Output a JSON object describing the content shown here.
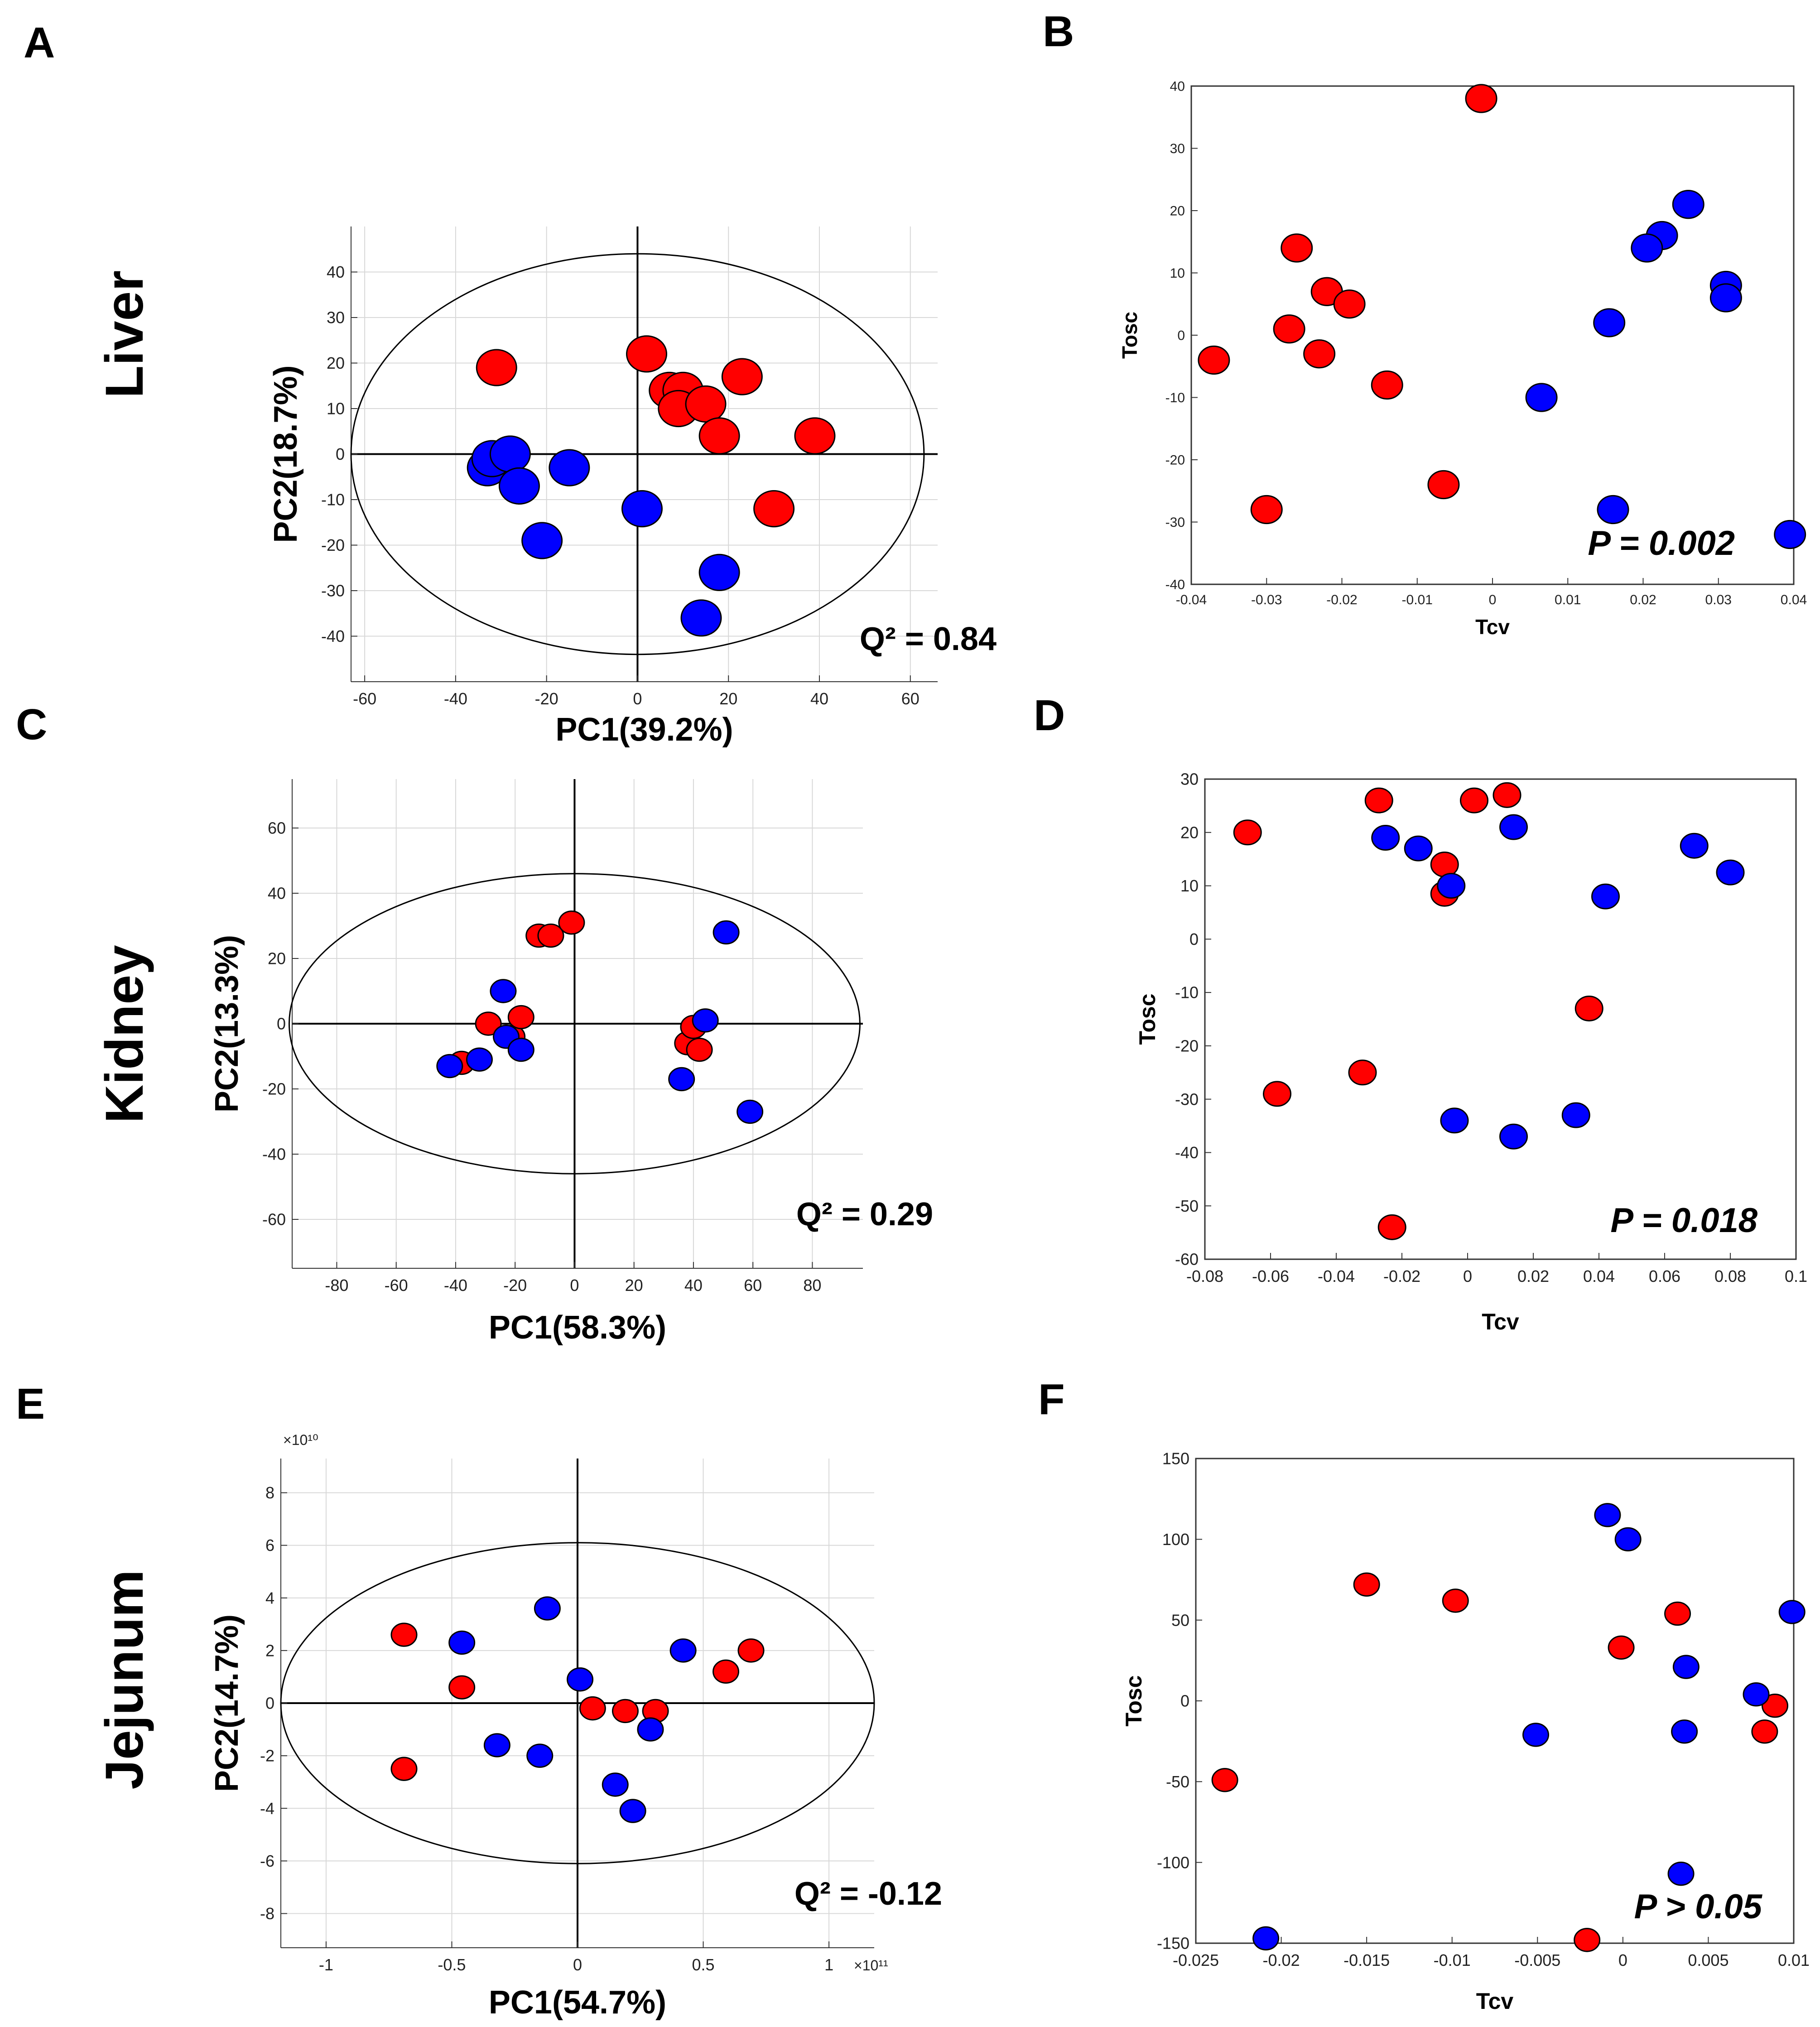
{
  "figure": {
    "panel_letters": [
      "A",
      "B",
      "C",
      "D",
      "E",
      "F"
    ],
    "tissues": [
      "Liver",
      "Kidney",
      "Jejunum"
    ]
  },
  "colors": {
    "group1": "#ff0000",
    "group2": "#0000ff",
    "grid": "#d8d8d8"
  },
  "chart_data": [
    {
      "id": "A",
      "type": "scatter",
      "tissue": "Liver",
      "xlabel": "PC1(39.2%)",
      "ylabel": "PC2(18.7%)",
      "xlim": [
        -63,
        66
      ],
      "ylim": [
        -50,
        50
      ],
      "xticks": [
        -60,
        -40,
        -20,
        0,
        20,
        40,
        60
      ],
      "yticks": [
        -40,
        -30,
        -20,
        -10,
        0,
        10,
        20,
        30,
        40
      ],
      "grid": true,
      "ellipse": {
        "center": [
          0,
          0
        ],
        "rx": 63,
        "ry": 44
      },
      "annotation": {
        "text": "Q² = 0.84",
        "position": "bottom-right"
      },
      "series": [
        {
          "name": "red",
          "color": "#ff0000",
          "points": [
            [
              -31,
              19
            ],
            [
              2,
              22
            ],
            [
              7,
              14
            ],
            [
              10,
              14
            ],
            [
              9,
              10
            ],
            [
              15,
              11
            ],
            [
              23,
              17
            ],
            [
              18,
              4
            ],
            [
              39,
              4
            ],
            [
              30,
              -12
            ]
          ]
        },
        {
          "name": "blue",
          "color": "#0000ff",
          "points": [
            [
              -33,
              -3
            ],
            [
              -32,
              -1
            ],
            [
              -28,
              0
            ],
            [
              -26,
              -7
            ],
            [
              -15,
              -3
            ],
            [
              -21,
              -19
            ],
            [
              1,
              -12
            ],
            [
              18,
              -26
            ],
            [
              14,
              -36
            ]
          ]
        }
      ]
    },
    {
      "id": "B",
      "type": "scatter",
      "xlabel": "Tcv",
      "ylabel": "Tosc",
      "xlim": [
        -0.04,
        0.04
      ],
      "ylim": [
        -40,
        40
      ],
      "xticks": [
        -0.04,
        -0.03,
        -0.02,
        -0.01,
        0,
        0.01,
        0.02,
        0.03,
        0.04
      ],
      "yticks": [
        -40,
        -30,
        -20,
        -10,
        0,
        10,
        20,
        30,
        40
      ],
      "grid": false,
      "annotation": {
        "text": "P = 0.002",
        "position": "bottom-right",
        "italic": true
      },
      "series": [
        {
          "name": "red",
          "color": "#ff0000",
          "points": [
            [
              -0.037,
              -4
            ],
            [
              -0.026,
              14
            ],
            [
              -0.027,
              1
            ],
            [
              -0.022,
              7
            ],
            [
              -0.019,
              5
            ],
            [
              -0.023,
              -3
            ],
            [
              -0.014,
              -8
            ],
            [
              -0.03,
              -28
            ],
            [
              -0.0065,
              -24
            ],
            [
              -0.0015,
              38
            ]
          ]
        },
        {
          "name": "blue",
          "color": "#0000ff",
          "points": [
            [
              0.0225,
              16
            ],
            [
              0.0205,
              14
            ],
            [
              0.026,
              21
            ],
            [
              0.031,
              8
            ],
            [
              0.031,
              6
            ],
            [
              0.0155,
              2
            ],
            [
              0.0065,
              -10
            ],
            [
              0.016,
              -28
            ],
            [
              0.0395,
              -32
            ]
          ]
        }
      ]
    },
    {
      "id": "C",
      "type": "scatter",
      "tissue": "Kidney",
      "xlabel": "PC1(58.3%)",
      "ylabel": "PC2(13.3%)",
      "xlim": [
        -95,
        97
      ],
      "ylim": [
        -75,
        75
      ],
      "xticks": [
        -80,
        -60,
        -40,
        -20,
        0,
        20,
        40,
        60,
        80
      ],
      "yticks": [
        -60,
        -40,
        -20,
        0,
        20,
        40,
        60
      ],
      "grid": true,
      "ellipse": {
        "center": [
          0,
          0
        ],
        "rx": 96,
        "ry": 46
      },
      "annotation": {
        "text": "Q² = 0.29",
        "position": "bottom-right"
      },
      "series": [
        {
          "name": "red",
          "color": "#ff0000",
          "points": [
            [
              -12,
              27
            ],
            [
              -8,
              27
            ],
            [
              -1,
              31
            ],
            [
              -29,
              0
            ],
            [
              -21,
              -4
            ],
            [
              -18,
              2
            ],
            [
              -38,
              -12
            ],
            [
              38,
              -6
            ],
            [
              40,
              -1
            ],
            [
              42,
              -8
            ]
          ]
        },
        {
          "name": "blue",
          "color": "#0000ff",
          "points": [
            [
              -24,
              10
            ],
            [
              -23,
              -4
            ],
            [
              -18,
              -8
            ],
            [
              -32,
              -11
            ],
            [
              -42,
              -13
            ],
            [
              44,
              1
            ],
            [
              51,
              28
            ],
            [
              36,
              -17
            ],
            [
              59,
              -27
            ]
          ]
        }
      ]
    },
    {
      "id": "D",
      "type": "scatter",
      "xlabel": "Tcv",
      "ylabel": "Tosc",
      "xlim": [
        -0.08,
        0.1
      ],
      "ylim": [
        -60,
        30
      ],
      "xticks": [
        -0.08,
        -0.06,
        -0.04,
        -0.02,
        0,
        0.02,
        0.04,
        0.06,
        0.08,
        0.1
      ],
      "yticks": [
        -60,
        -50,
        -40,
        -30,
        -20,
        -10,
        0,
        10,
        20,
        30
      ],
      "grid": false,
      "annotation": {
        "text": "P = 0.018",
        "position": "bottom-right",
        "italic": true
      },
      "series": [
        {
          "name": "red",
          "color": "#ff0000",
          "points": [
            [
              -0.067,
              20
            ],
            [
              -0.027,
              26
            ],
            [
              0.002,
              26
            ],
            [
              0.012,
              27
            ],
            [
              -0.007,
              14
            ],
            [
              -0.007,
              8.5
            ],
            [
              0.037,
              -13
            ],
            [
              -0.058,
              -29
            ],
            [
              -0.032,
              -25
            ],
            [
              -0.023,
              -54
            ]
          ]
        },
        {
          "name": "blue",
          "color": "#0000ff",
          "points": [
            [
              -0.025,
              19
            ],
            [
              -0.015,
              17
            ],
            [
              0.014,
              21
            ],
            [
              -0.005,
              10
            ],
            [
              0.042,
              8
            ],
            [
              0.069,
              17.5
            ],
            [
              0.08,
              12.5
            ],
            [
              -0.004,
              -34
            ],
            [
              0.014,
              -37
            ],
            [
              0.033,
              -33
            ]
          ]
        }
      ]
    },
    {
      "id": "E",
      "type": "scatter",
      "tissue": "Jejunum",
      "xlabel": "PC1(54.7%)",
      "ylabel": "PC2(14.7%)",
      "x_exponent": "×10¹¹",
      "y_exponent": "×10¹⁰",
      "xlim": [
        -1.18,
        1.18
      ],
      "ylim": [
        -9.3,
        9.3
      ],
      "xticks": [
        -1,
        -0.5,
        0,
        0.5,
        1
      ],
      "yticks": [
        -8,
        -6,
        -4,
        -2,
        0,
        2,
        4,
        6,
        8
      ],
      "grid": true,
      "ellipse": {
        "center": [
          0,
          0
        ],
        "rx": 1.18,
        "ry": 6.1
      },
      "annotation": {
        "text": "Q² = -0.12",
        "position": "bottom-right"
      },
      "series": [
        {
          "name": "red",
          "color": "#ff0000",
          "points": [
            [
              -0.69,
              2.6
            ],
            [
              -0.46,
              0.6
            ],
            [
              -0.69,
              -2.5
            ],
            [
              0.06,
              -0.2
            ],
            [
              0.19,
              -0.3
            ],
            [
              0.31,
              -0.3
            ],
            [
              0.59,
              1.2
            ],
            [
              0.69,
              2.0
            ]
          ]
        },
        {
          "name": "blue",
          "color": "#0000ff",
          "points": [
            [
              -0.46,
              2.3
            ],
            [
              -0.12,
              3.6
            ],
            [
              0.01,
              0.9
            ],
            [
              0.42,
              2.0
            ],
            [
              -0.32,
              -1.6
            ],
            [
              -0.15,
              -2.0
            ],
            [
              0.29,
              -1.0
            ],
            [
              0.15,
              -3.1
            ],
            [
              0.22,
              -4.1
            ]
          ]
        }
      ]
    },
    {
      "id": "F",
      "type": "scatter",
      "xlabel": "Tcv",
      "ylabel": "Tosc",
      "xlim": [
        -0.025,
        0.01
      ],
      "ylim": [
        -150,
        150
      ],
      "xticks": [
        -0.025,
        -0.02,
        -0.015,
        -0.01,
        -0.005,
        0,
        0.005,
        0.01
      ],
      "yticks": [
        -150,
        -100,
        -50,
        0,
        50,
        100,
        150
      ],
      "grid": false,
      "annotation": {
        "text": "P > 0.05",
        "position": "bottom-right",
        "italic": true
      },
      "series": [
        {
          "name": "red",
          "color": "#ff0000",
          "points": [
            [
              -0.015,
              72
            ],
            [
              -0.0098,
              62
            ],
            [
              0.0032,
              54
            ],
            [
              -0.0001,
              33
            ],
            [
              0.0089,
              -3
            ],
            [
              0.0083,
              -19
            ],
            [
              -0.0233,
              -49
            ],
            [
              -0.0021,
              -148
            ]
          ]
        },
        {
          "name": "blue",
          "color": "#0000ff",
          "points": [
            [
              -0.0009,
              115
            ],
            [
              0.0003,
              100
            ],
            [
              0.0099,
              55
            ],
            [
              0.0037,
              21
            ],
            [
              0.0078,
              4
            ],
            [
              -0.0051,
              -21
            ],
            [
              0.0036,
              -19
            ],
            [
              0.0034,
              -107
            ],
            [
              -0.0209,
              -147
            ]
          ]
        }
      ]
    }
  ]
}
